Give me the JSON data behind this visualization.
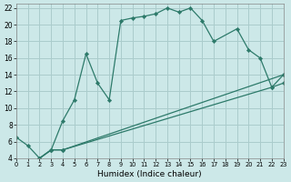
{
  "xlabel": "Humidex (Indice chaleur)",
  "bg_color": "#cce8e8",
  "grid_color": "#aacccc",
  "line_color": "#2d7a6a",
  "xlim": [
    0,
    23
  ],
  "ylim": [
    4,
    22.5
  ],
  "xticks": [
    0,
    1,
    2,
    3,
    4,
    5,
    6,
    7,
    8,
    9,
    10,
    11,
    12,
    13,
    14,
    15,
    16,
    17,
    18,
    19,
    20,
    21,
    22,
    23
  ],
  "yticks": [
    4,
    6,
    8,
    10,
    12,
    14,
    16,
    18,
    20,
    22
  ],
  "s1x": [
    0,
    1,
    2,
    3,
    4,
    5,
    6,
    7,
    8,
    9,
    10,
    11,
    12,
    13,
    14,
    15,
    16,
    17,
    19,
    20,
    21,
    22,
    23
  ],
  "s1y": [
    6.5,
    5.5,
    4.0,
    5.0,
    8.5,
    11.0,
    16.5,
    13.0,
    11.0,
    20.5,
    20.8,
    21.0,
    21.3,
    22.0,
    21.5,
    22.0,
    20.5,
    18.0,
    19.5,
    17.0,
    16.0,
    12.5,
    14.0
  ],
  "s2x": [
    2,
    3,
    4,
    23
  ],
  "s2y": [
    4.0,
    5.0,
    5.0,
    14.0
  ],
  "s3x": [
    2,
    3,
    4,
    22,
    23
  ],
  "s3y": [
    4.0,
    5.0,
    5.0,
    12.5,
    13.0
  ]
}
